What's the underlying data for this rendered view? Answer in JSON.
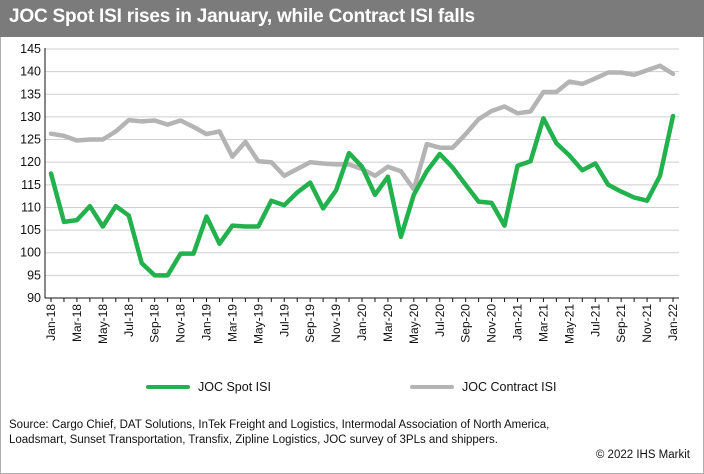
{
  "title": "JOC Spot ISI rises in January, while Contract ISI falls",
  "source_text": "Source: Cargo Chief, DAT Solutions, InTek Freight and Logistics, Intermodal Association of North America, Loadsmart, Sunset Transportation, Transfix, Zipline Logistics, JOC survey of 3PLs and shippers.",
  "copyright": "© 2022 IHS Markit",
  "colors": {
    "title_bar": "#7b7b7b",
    "spot": "#22b14c",
    "contract": "#b4b4b4",
    "grid": "#cfcfcf"
  },
  "legend": [
    {
      "label": "JOC Spot ISI",
      "color": "#22b14c"
    },
    {
      "label": "JOC Contract ISI",
      "color": "#b4b4b4"
    }
  ],
  "chart_data": {
    "type": "line",
    "title": "JOC Spot ISI rises in January, while Contract ISI falls",
    "ylim": [
      90,
      145
    ],
    "yticks": [
      90,
      95,
      100,
      105,
      110,
      115,
      120,
      125,
      130,
      135,
      140,
      145
    ],
    "grid": "horizontal",
    "legend_position": "bottom",
    "x": [
      "Jan-18",
      "Feb-18",
      "Mar-18",
      "Apr-18",
      "May-18",
      "Jun-18",
      "Jul-18",
      "Aug-18",
      "Sep-18",
      "Oct-18",
      "Nov-18",
      "Dec-18",
      "Jan-19",
      "Feb-19",
      "Mar-19",
      "Apr-19",
      "May-19",
      "Jun-19",
      "Jul-19",
      "Aug-19",
      "Sep-19",
      "Oct-19",
      "Nov-19",
      "Dec-19",
      "Jan-20",
      "Feb-20",
      "Mar-20",
      "Apr-20",
      "May-20",
      "Jun-20",
      "Jul-20",
      "Aug-20",
      "Sep-20",
      "Oct-20",
      "Nov-20",
      "Dec-20",
      "Jan-21",
      "Feb-21",
      "Mar-21",
      "Apr-21",
      "May-21",
      "Jun-21",
      "Jul-21",
      "Aug-21",
      "Sep-21",
      "Oct-21",
      "Nov-21",
      "Dec-21",
      "Jan-22"
    ],
    "xtick_labels": [
      "Jan-18",
      "Mar-18",
      "May-18",
      "Jul-18",
      "Sep-18",
      "Nov-18",
      "Jan-19",
      "Mar-19",
      "May-19",
      "Jul-19",
      "Sep-19",
      "Nov-19",
      "Jan-20",
      "Mar-20",
      "May-20",
      "Jul-20",
      "Sep-20",
      "Nov-20",
      "Jan-21",
      "Mar-21",
      "May-21",
      "Jul-21",
      "Sep-21",
      "Nov-21",
      "Jan-22"
    ],
    "series": [
      {
        "name": "JOC Spot ISI",
        "color": "#22b14c",
        "values": [
          117.5,
          106.8,
          107.2,
          110.3,
          105.8,
          110.3,
          108.2,
          97.7,
          95.0,
          95.0,
          99.8,
          99.8,
          108.0,
          102.0,
          106.0,
          105.8,
          105.8,
          111.5,
          110.5,
          113.3,
          115.5,
          109.8,
          113.8,
          122.0,
          119.0,
          112.8,
          116.8,
          103.5,
          112.8,
          118.0,
          121.8,
          118.8,
          115.0,
          111.3,
          111.0,
          106.0,
          119.2,
          120.2,
          129.7,
          124.2,
          121.5,
          118.2,
          119.7,
          115.0,
          113.5,
          112.2,
          111.5,
          117.0,
          130.2
        ]
      },
      {
        "name": "JOC Contract ISI",
        "color": "#b4b4b4",
        "values": [
          126.3,
          125.8,
          124.8,
          125.0,
          125.0,
          126.8,
          129.3,
          129.0,
          129.2,
          128.3,
          129.2,
          127.8,
          126.2,
          126.8,
          121.2,
          124.5,
          120.2,
          120.0,
          117.0,
          118.5,
          120.0,
          119.7,
          119.5,
          119.5,
          118.5,
          117.0,
          119.0,
          118.0,
          114.0,
          124.0,
          123.2,
          123.2,
          126.2,
          129.5,
          131.3,
          132.3,
          130.8,
          131.2,
          135.5,
          135.5,
          137.8,
          137.3,
          138.5,
          139.8,
          139.8,
          139.3,
          140.3,
          141.3,
          139.5
        ]
      }
    ]
  }
}
